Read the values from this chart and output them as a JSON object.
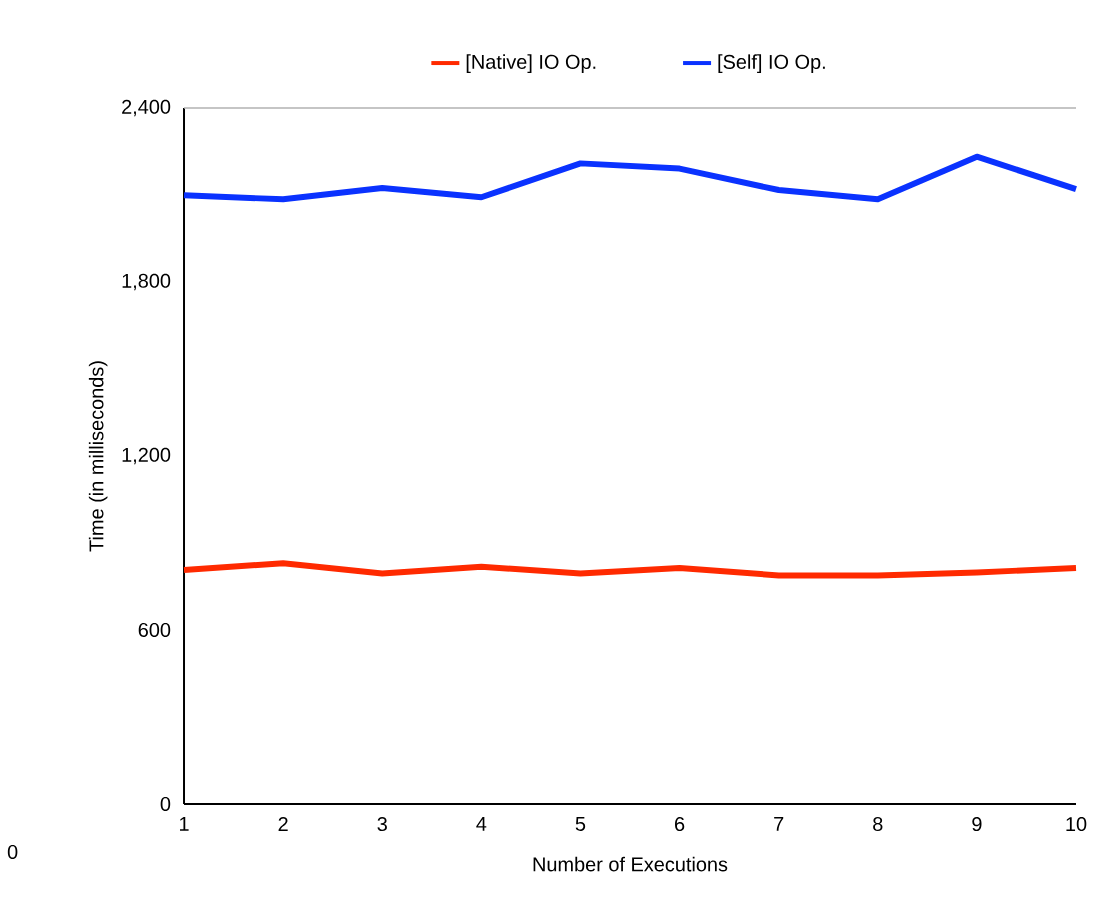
{
  "chart_data": {
    "type": "line",
    "xlabel": "Number of Executions",
    "ylabel": "Time (in milliseconds)",
    "x": [
      1,
      2,
      3,
      4,
      5,
      6,
      7,
      8,
      9,
      10
    ],
    "series": [
      {
        "name": "[Native] IO Op.",
        "color": "#ff2a00",
        "values": [
          807,
          830,
          795,
          818,
          795,
          814,
          788,
          788,
          798,
          814
        ]
      },
      {
        "name": "[Self] IO Op.",
        "color": "#0a32ff",
        "values": [
          2099,
          2085,
          2124,
          2092,
          2209,
          2191,
          2117,
          2085,
          2232,
          2120
        ]
      }
    ],
    "xlim": [
      1,
      10
    ],
    "xticks": [
      1,
      2,
      3,
      4,
      5,
      6,
      7,
      8,
      9,
      10
    ],
    "ylim": [
      0,
      2400
    ],
    "yticks": [
      0,
      {
        "value": 600,
        "label": "600"
      },
      {
        "value": 1200,
        "label": "1,200"
      },
      {
        "value": 1800,
        "label": "1,800"
      },
      {
        "value": 2400,
        "label": "2,400"
      }
    ],
    "legend": "top",
    "marker": "none",
    "line_style": "solid",
    "annotations": [
      "0"
    ]
  }
}
